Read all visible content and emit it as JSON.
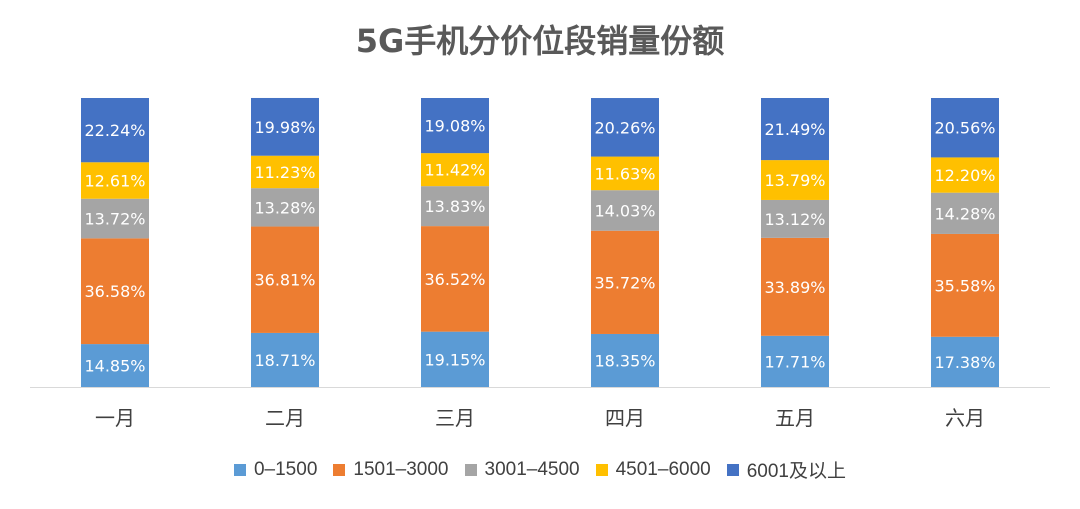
{
  "chart_data": {
    "type": "bar",
    "stacked": true,
    "percent": true,
    "title": "5G手机分价位段销量份额",
    "categories": [
      "一月",
      "二月",
      "三月",
      "四月",
      "五月",
      "六月"
    ],
    "series": [
      {
        "name": "0–1500",
        "color": "#5B9BD5",
        "values": [
          14.85,
          18.71,
          19.15,
          18.35,
          17.71,
          17.38
        ],
        "labels": [
          "14.85%",
          "18.71%",
          "19.15%",
          "18.35%",
          "17.71%",
          "17.38%"
        ]
      },
      {
        "name": "1501–3000",
        "color": "#ED7D31",
        "values": [
          36.58,
          36.81,
          36.52,
          35.72,
          33.89,
          35.58
        ],
        "labels": [
          "36.58%",
          "36.81%",
          "36.52%",
          "35.72%",
          "33.89%",
          "35.58%"
        ]
      },
      {
        "name": "3001–4500",
        "color": "#A5A5A5",
        "values": [
          13.72,
          13.28,
          13.83,
          14.03,
          13.12,
          14.28
        ],
        "labels": [
          "13.72%",
          "13.28%",
          "13.83%",
          "14.03%",
          "13.12%",
          "14.28%"
        ]
      },
      {
        "name": "4501–6000",
        "color": "#FFC000",
        "values": [
          12.61,
          11.23,
          11.42,
          11.63,
          13.79,
          12.2
        ],
        "labels": [
          "12.61%",
          "11.23%",
          "11.42%",
          "11.63%",
          "13.79%",
          "12.20%"
        ]
      },
      {
        "name": "6001及以上",
        "color": "#4472C4",
        "values": [
          22.24,
          19.98,
          19.08,
          20.26,
          21.49,
          20.56
        ],
        "labels": [
          "22.24%",
          "19.98%",
          "19.08%",
          "20.26%",
          "21.49%",
          "20.56%"
        ]
      }
    ],
    "ylim": [
      0,
      100
    ],
    "grid": false,
    "legend_position": "bottom"
  }
}
